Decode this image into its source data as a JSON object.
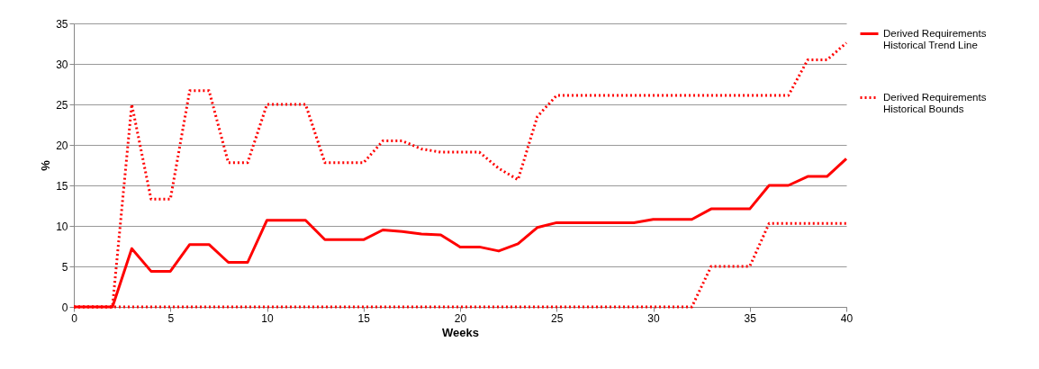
{
  "chart_data": {
    "type": "line",
    "xlabel": "Weeks",
    "ylabel": "%",
    "x": [
      0,
      1,
      2,
      3,
      4,
      5,
      6,
      7,
      8,
      9,
      10,
      11,
      12,
      13,
      14,
      15,
      16,
      17,
      18,
      19,
      20,
      21,
      22,
      23,
      24,
      25,
      26,
      27,
      28,
      29,
      30,
      31,
      32,
      33,
      34,
      35,
      36,
      37,
      38,
      39,
      40
    ],
    "series": [
      {
        "name": "Derived Requirements Historical Trend Line",
        "color": "#ff0000",
        "line_style": "solid",
        "values": [
          0,
          0,
          0,
          7.2,
          4.4,
          4.4,
          7.7,
          7.7,
          5.5,
          5.5,
          10.7,
          10.7,
          10.7,
          8.3,
          8.3,
          8.3,
          9.5,
          9.3,
          9.0,
          8.9,
          7.4,
          7.4,
          6.9,
          7.8,
          9.8,
          10.4,
          10.4,
          10.4,
          10.4,
          10.4,
          10.8,
          10.8,
          10.8,
          12.1,
          12.1,
          12.1,
          15,
          15,
          16.1,
          16.1,
          18.3
        ]
      },
      {
        "name": "Derived Requirements Historical Bounds",
        "color": "#ff0000",
        "line_style": "dotted",
        "values": [
          0,
          0,
          0,
          25,
          13.3,
          13.3,
          26.7,
          26.7,
          17.8,
          17.8,
          25,
          25,
          25,
          17.8,
          17.8,
          17.8,
          20.5,
          20.5,
          19.5,
          19.1,
          19.1,
          19.1,
          17.1,
          15.7,
          23.5,
          26.1,
          26.1,
          26.1,
          26.1,
          26.1,
          26.1,
          26.1,
          26.1,
          26.1,
          26.1,
          26.1,
          26.1,
          26.1,
          30.5,
          30.5,
          32.6
        ]
      },
      {
        "color": "#ff0000",
        "line_style": "dotted",
        "values": [
          0,
          0,
          0,
          0,
          0,
          0,
          0,
          0,
          0,
          0,
          0,
          0,
          0,
          0,
          0,
          0,
          0,
          0,
          0,
          0,
          0,
          0,
          0,
          0,
          0,
          0,
          0,
          0,
          0,
          0,
          0,
          0,
          0,
          5,
          5,
          5,
          10.3,
          10.3,
          10.3,
          10.3,
          10.3
        ]
      }
    ],
    "xlim": [
      0,
      40
    ],
    "xticks": [
      0,
      5,
      10,
      15,
      20,
      25,
      30,
      35,
      40
    ],
    "ylim": [
      0,
      35
    ],
    "yticks": [
      0,
      5,
      10,
      15,
      20,
      25,
      30,
      35
    ],
    "grid": "y",
    "legend": "right",
    "marker": "none"
  }
}
